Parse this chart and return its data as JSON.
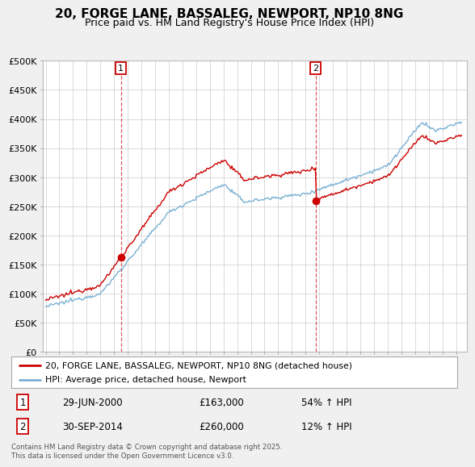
{
  "title": "20, FORGE LANE, BASSALEG, NEWPORT, NP10 8NG",
  "subtitle": "Price paid vs. HM Land Registry's House Price Index (HPI)",
  "ylim": [
    0,
    500000
  ],
  "yticks": [
    0,
    50000,
    100000,
    150000,
    200000,
    250000,
    300000,
    350000,
    400000,
    450000,
    500000
  ],
  "ytick_labels": [
    "£0",
    "£50K",
    "£100K",
    "£150K",
    "£200K",
    "£250K",
    "£300K",
    "£350K",
    "£400K",
    "£450K",
    "£500K"
  ],
  "red_color": "#cc0000",
  "blue_color": "#7ab0d4",
  "bg_color": "#f0f0f0",
  "plot_bg_color": "#ffffff",
  "grid_color": "#cccccc",
  "purchase1_year": 2000.49,
  "purchase1_price": 163000,
  "purchase2_year": 2014.74,
  "purchase2_price": 260000,
  "legend_label_red": "20, FORGE LANE, BASSALEG, NEWPORT, NP10 8NG (detached house)",
  "legend_label_blue": "HPI: Average price, detached house, Newport",
  "table_data": [
    [
      "1",
      "29-JUN-2000",
      "£163,000",
      "54% ↑ HPI"
    ],
    [
      "2",
      "30-SEP-2014",
      "£260,000",
      "12% ↑ HPI"
    ]
  ],
  "copyright_text": "Contains HM Land Registry data © Crown copyright and database right 2025.\nThis data is licensed under the Open Government Licence v3.0.",
  "title_fontsize": 11,
  "subtitle_fontsize": 9,
  "tick_fontsize": 8
}
